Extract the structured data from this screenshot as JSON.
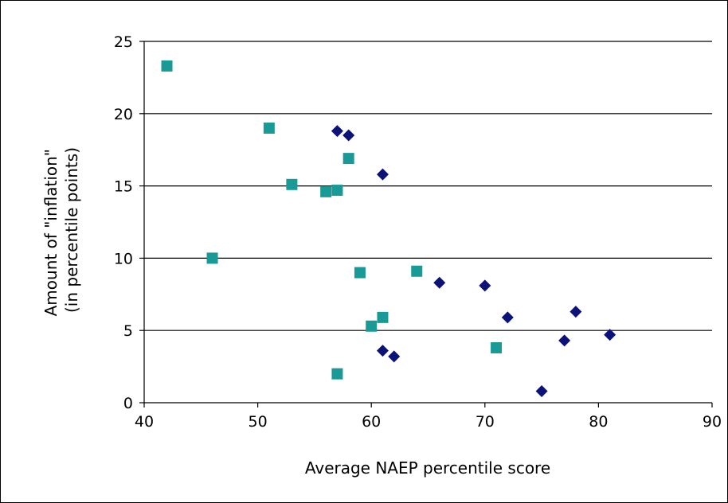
{
  "chart_data": {
    "type": "scatter",
    "xlabel": "Average NAEP percentile score",
    "ylabel_lines": [
      "Amount of \"inflation\"",
      "(in percentile points)"
    ],
    "xlim": [
      40,
      90
    ],
    "ylim": [
      0,
      25
    ],
    "xticks": [
      40,
      50,
      60,
      70,
      80,
      90
    ],
    "yticks": [
      0,
      5,
      10,
      15,
      20,
      25
    ],
    "grid": {
      "horizontal": true,
      "vertical": false
    },
    "series": [
      {
        "marker": "square",
        "color": "#1a9a97",
        "points": [
          [
            42,
            23.3
          ],
          [
            46,
            10.0
          ],
          [
            51,
            19.0
          ],
          [
            53,
            15.1
          ],
          [
            56,
            14.6
          ],
          [
            57,
            14.7
          ],
          [
            57,
            2.0
          ],
          [
            58,
            16.9
          ],
          [
            59,
            9.0
          ],
          [
            60,
            5.3
          ],
          [
            61,
            5.9
          ],
          [
            64,
            9.1
          ],
          [
            71,
            3.8
          ]
        ]
      },
      {
        "marker": "diamond",
        "color": "#0c1378",
        "points": [
          [
            57,
            18.8
          ],
          [
            58,
            18.5
          ],
          [
            61,
            15.8
          ],
          [
            61,
            3.6
          ],
          [
            62,
            3.2
          ],
          [
            66,
            8.3
          ],
          [
            70,
            8.1
          ],
          [
            72,
            5.9
          ],
          [
            75,
            0.8
          ],
          [
            77,
            4.3
          ],
          [
            78,
            6.3
          ],
          [
            81,
            4.7
          ]
        ]
      }
    ]
  }
}
